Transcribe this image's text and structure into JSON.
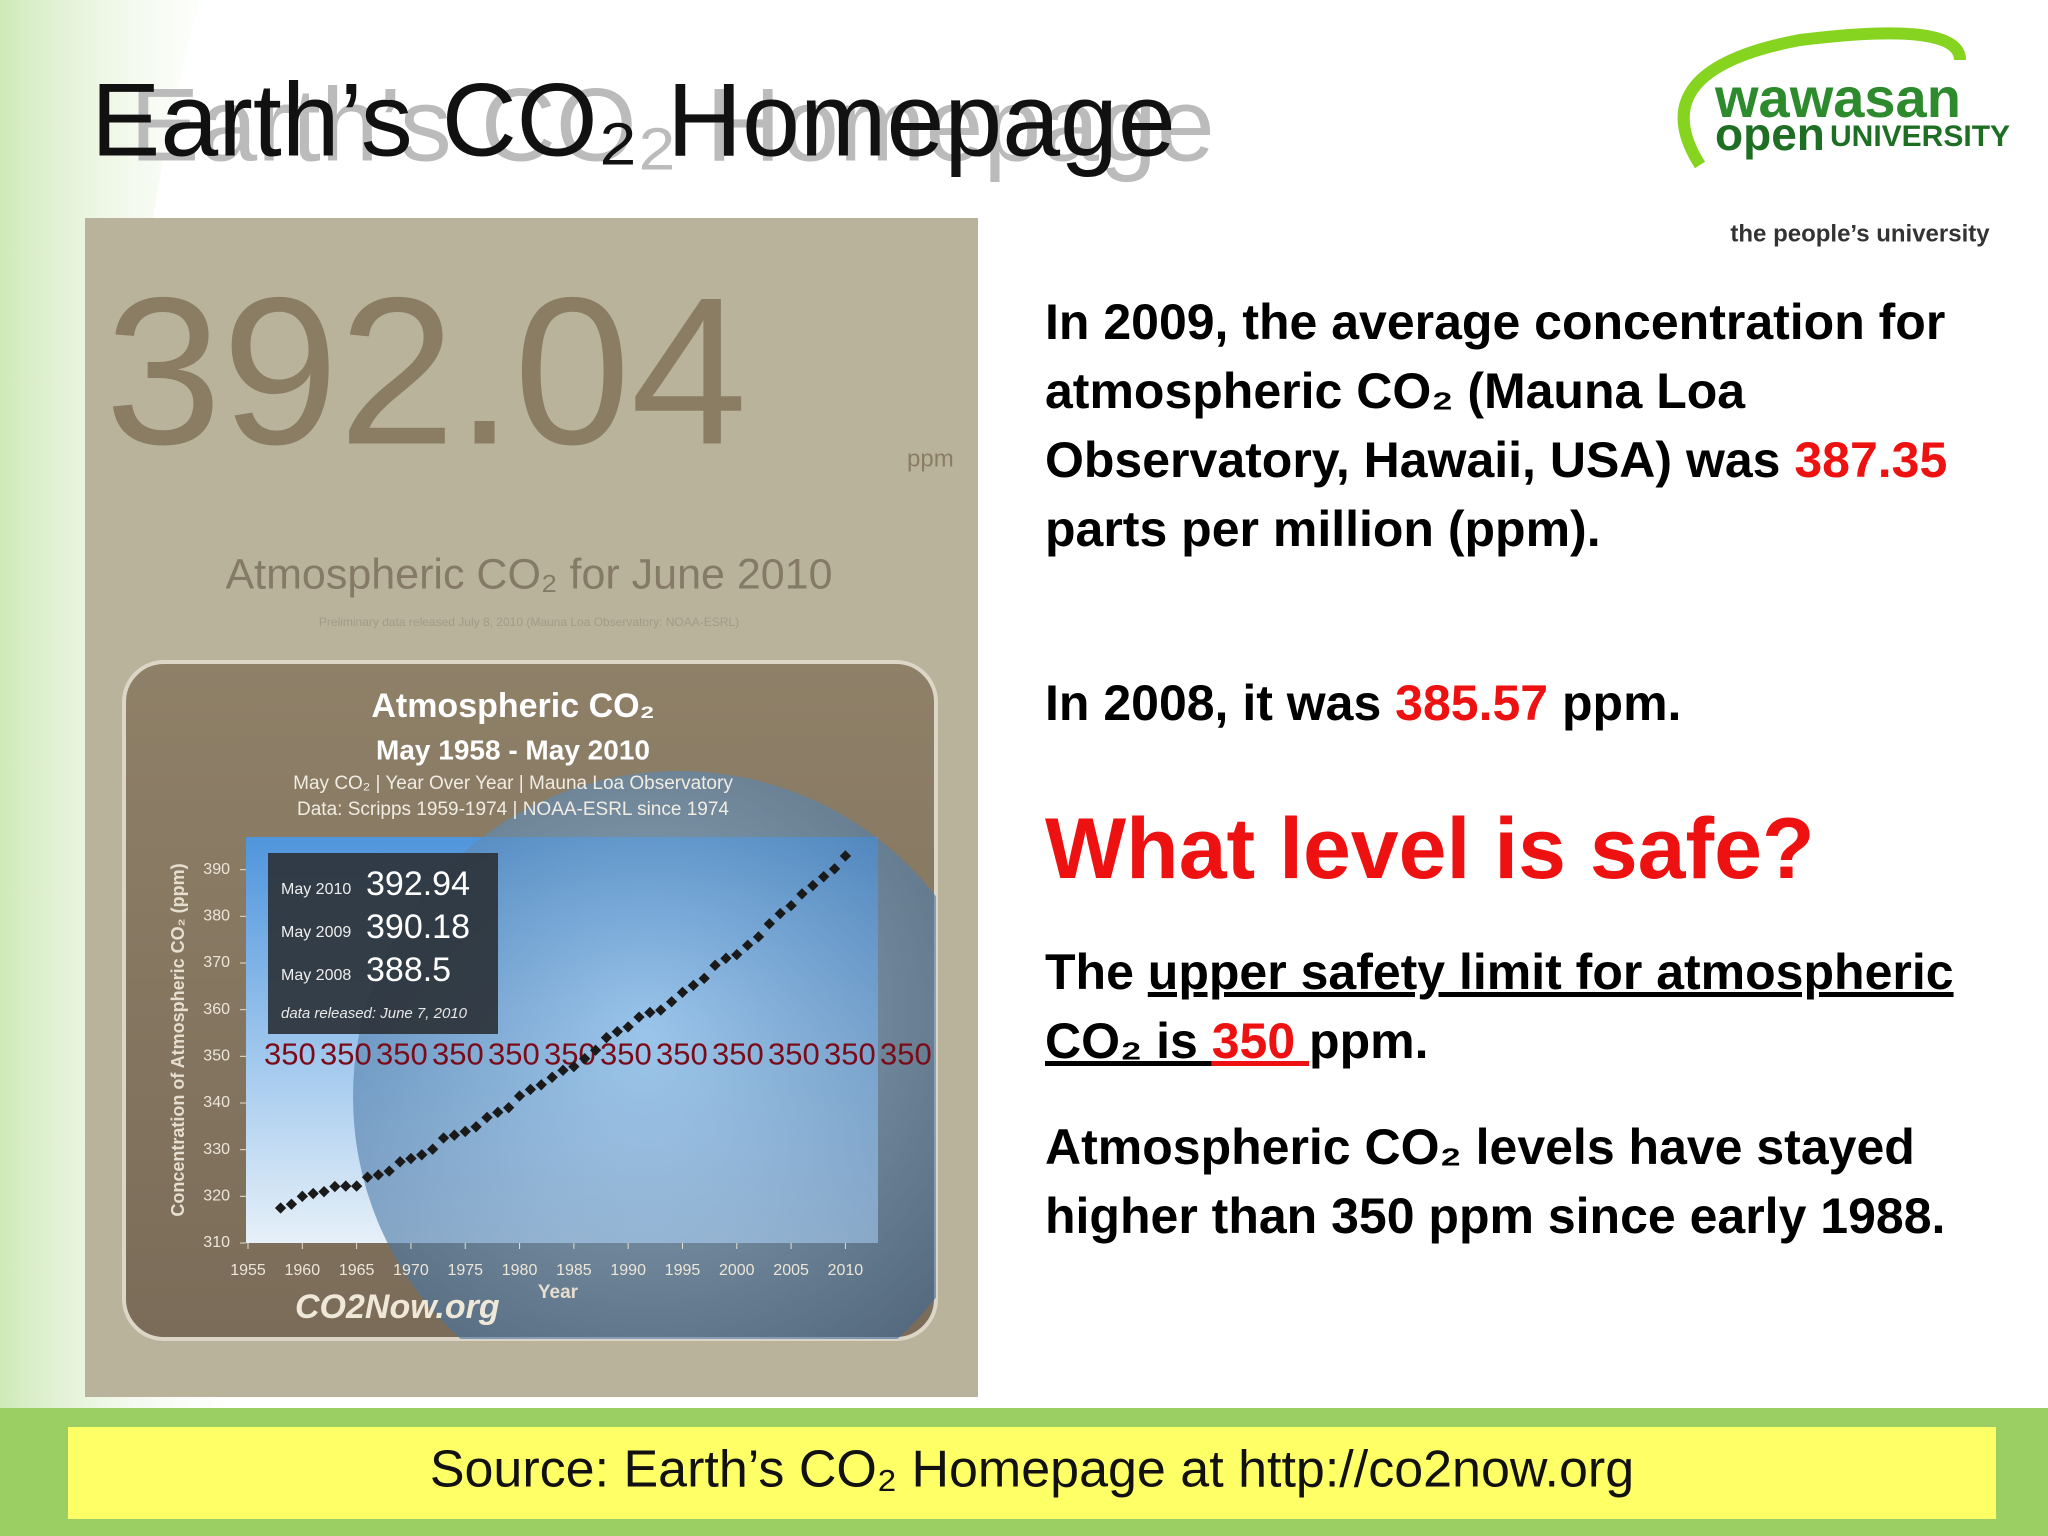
{
  "header": {
    "title": "Earth’s CO₂ Homepage"
  },
  "logo": {
    "name_top": "wawasan",
    "name_open": "open",
    "name_university": "UNIVERSITY",
    "tagline": "the people’s university"
  },
  "panel": {
    "reading": "392.04",
    "unit": "ppm",
    "caption": "Atmospheric CO₂ for June 2010",
    "note": "Preliminary data released July 8, 2010 (Mauna Loa Observatory: NOAA-ESRL)"
  },
  "chart_data": {
    "type": "scatter",
    "title": "Atmospheric CO₂",
    "subtitle": "May 1958 - May 2010",
    "notes": [
      "May CO₂  |  Year Over Year  |  Mauna Loa Observatory",
      "Data: Scripps 1959-1974 | NOAA-ESRL since 1974"
    ],
    "y_label": "Concentration of Atmospheric CO₂ (ppm)",
    "x_label": "Year",
    "brand": "CO2Now.org",
    "x": [
      1958,
      1959,
      1960,
      1961,
      1962,
      1963,
      1964,
      1965,
      1966,
      1967,
      1968,
      1969,
      1970,
      1971,
      1972,
      1973,
      1974,
      1975,
      1976,
      1977,
      1978,
      1979,
      1980,
      1981,
      1982,
      1983,
      1984,
      1985,
      1986,
      1987,
      1988,
      1989,
      1990,
      1991,
      1992,
      1993,
      1994,
      1995,
      1996,
      1997,
      1998,
      1999,
      2000,
      2001,
      2002,
      2003,
      2004,
      2005,
      2006,
      2007,
      2008,
      2009,
      2010
    ],
    "values": [
      317.5,
      318.3,
      320,
      320.6,
      321,
      322.1,
      322.2,
      322.2,
      324.1,
      324.6,
      325.4,
      327.4,
      328.1,
      328.9,
      330.1,
      332.5,
      333.1,
      333.9,
      334.9,
      336.9,
      338,
      339,
      341.5,
      342.9,
      343.9,
      345.5,
      347,
      347.8,
      349.5,
      351.3,
      354,
      355.3,
      356.3,
      358.4,
      359.4,
      359.9,
      361.7,
      363.7,
      365.2,
      366.7,
      369.5,
      371,
      371.8,
      373.8,
      375.6,
      378.4,
      380.6,
      382.3,
      384.8,
      386.6,
      388.5,
      390.18,
      392.94
    ],
    "color": "#1a1a1a",
    "xlim": [
      1955,
      2013
    ],
    "ylim": [
      310,
      397
    ],
    "xticks": [
      1955,
      1960,
      1965,
      1970,
      1975,
      1980,
      1985,
      1990,
      1995,
      2000,
      2005,
      2010
    ],
    "yticks": [
      310,
      320,
      330,
      340,
      350,
      360,
      370,
      380,
      390
    ],
    "safe_level": 350,
    "callouts": [
      {
        "label": "May 2010",
        "value": 392.94
      },
      {
        "label": "May 2009",
        "value": 390.18
      },
      {
        "label": "May 2008",
        "value": 388.5
      }
    ],
    "released": "data released:  June 7, 2010"
  },
  "text": {
    "p1": {
      "before": "In 2009, the average concentration for atmospheric CO₂ (Mauna Loa Observatory, Hawaii, USA) was ",
      "value": "387.35",
      "after": " parts per million (ppm)."
    },
    "p2": {
      "before": "In 2008, it was ",
      "value": "385.57",
      "after": " ppm."
    },
    "heading": "What level is safe?",
    "p3": {
      "before": "The ",
      "underlined": "upper safety limit for atmospheric CO₂ is ",
      "value": "350 ",
      "after": "ppm."
    },
    "p4": "Atmospheric CO₂ levels have stayed higher than 350 ppm since early 1988."
  },
  "footer": {
    "source": "Source: Earth’s CO₂ Homepage at http://co2now.org"
  }
}
